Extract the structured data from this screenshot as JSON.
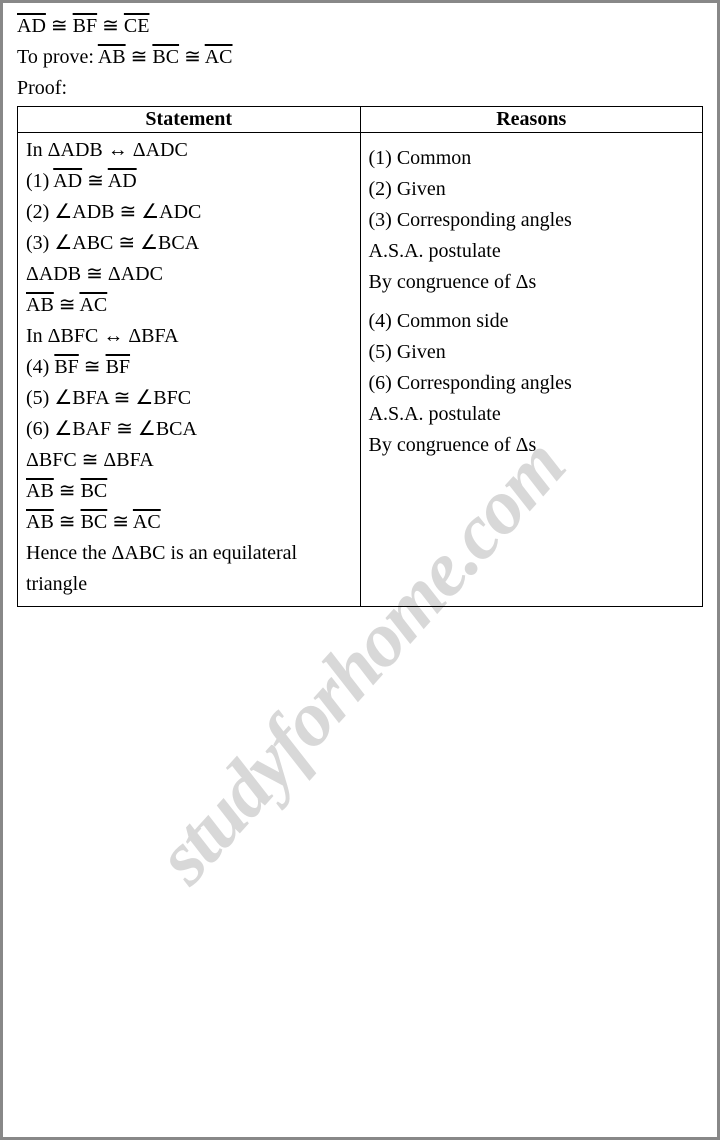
{
  "watermark": "studyforhome.com",
  "pre": {
    "line1_html": "<span class=\"over\">AD</span> ≅ <span class=\"over\">BF</span> ≅ <span class=\"over\">CE</span>",
    "line2_html": "To prove: <span class=\"over\">AB</span> ≅ <span class=\"over\">BC</span> ≅ <span class=\"over\">AC</span>",
    "line3": "Proof:"
  },
  "table": {
    "header_statement": "Statement",
    "header_reasons": "Reasons",
    "statements": [
      "In ΔADB ↔ ΔADC",
      "(1) <span class=\"over\">AD</span> ≅ <span class=\"over\">AD</span>",
      "(2) ∠ADB ≅ ∠ADC",
      "(3) ∠ABC ≅ ∠BCA",
      "ΔADB ≅ ΔADC",
      "<span class=\"over\">AB</span> ≅ <span class=\"over\">AC</span>",
      "In ΔBFC ↔ ΔBFA",
      "(4) <span class=\"over\">BF</span> ≅ <span class=\"over\">BF</span>",
      "(5) ∠BFA ≅ ∠BFC",
      "(6) ∠BAF ≅ ∠BCA",
      "ΔBFC ≅ ΔBFA",
      "<span class=\"over\">AB</span> ≅ <span class=\"over\">BC</span>",
      "<span class=\"over\">AB</span> ≅ <span class=\"over\">BC</span> ≅ <span class=\"over\">AC</span>",
      "Hence the ΔABC is an equilateral",
      "triangle"
    ],
    "reasons": [
      "",
      "(1) Common",
      "(2) Given",
      "(3) Corresponding angles",
      "A.S.A. postulate",
      "By congruence of Δs",
      "",
      "(4) Common side",
      "(5) Given",
      "(6) Corresponding angles",
      "A.S.A. postulate",
      "By congruence of Δs",
      "",
      "",
      ""
    ]
  }
}
